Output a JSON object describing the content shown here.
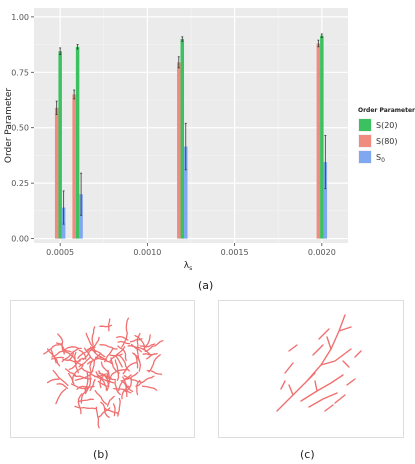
{
  "chart_data": {
    "type": "bar",
    "title": "",
    "xlabel": "λ",
    "xlabel_sub": "s",
    "ylabel": "Order Parameter",
    "x_ticks": [
      0.0005,
      0.001,
      0.0015,
      0.002
    ],
    "x_tick_labels": [
      "0.0005",
      "0.0010",
      "0.0015",
      "0.0020"
    ],
    "xlim": [
      0.00035,
      0.00215
    ],
    "y_ticks": [
      0.0,
      0.25,
      0.5,
      0.75,
      1.0
    ],
    "y_tick_labels": [
      "0.00",
      "0.25",
      "0.50",
      "0.75",
      "1.00"
    ],
    "ylim": [
      -0.02,
      1.04
    ],
    "grid": true,
    "legend": {
      "title": "Order Parameter",
      "placement": "right",
      "entries": [
        {
          "label": "S(20)",
          "color": "#3cc160"
        },
        {
          "label": "S(80)",
          "color": "#f08c7f"
        },
        {
          "label": "S",
          "sub": "0",
          "color": "#7fa8f0"
        }
      ]
    },
    "bar_width": 2e-05,
    "groups": [
      {
        "x": 0.0005,
        "bars": [
          {
            "series": "S(80)",
            "value": 0.59,
            "err": 0.03
          },
          {
            "series": "S(20)",
            "value": 0.845,
            "err": 0.015
          },
          {
            "series": "S0",
            "value": 0.14,
            "err": 0.075
          }
        ]
      },
      {
        "x": 0.0006,
        "bars": [
          {
            "series": "S(80)",
            "value": 0.65,
            "err": 0.02
          },
          {
            "series": "S(20)",
            "value": 0.865,
            "err": 0.01
          },
          {
            "series": "S0",
            "value": 0.2,
            "err": 0.095
          }
        ]
      },
      {
        "x": 0.0012,
        "bars": [
          {
            "series": "S(80)",
            "value": 0.795,
            "err": 0.025
          },
          {
            "series": "S(20)",
            "value": 0.9,
            "err": 0.01
          },
          {
            "series": "S0",
            "value": 0.415,
            "err": 0.105
          }
        ]
      },
      {
        "x": 0.002,
        "bars": [
          {
            "series": "S(80)",
            "value": 0.88,
            "err": 0.015
          },
          {
            "series": "S(20)",
            "value": 0.915,
            "err": 0.008
          },
          {
            "series": "S0",
            "value": 0.345,
            "err": 0.12
          }
        ]
      }
    ]
  },
  "captions": {
    "a": "(a)",
    "b": "(b)",
    "c": "(c)"
  },
  "panels": {
    "fibre_color": "#f07070"
  }
}
